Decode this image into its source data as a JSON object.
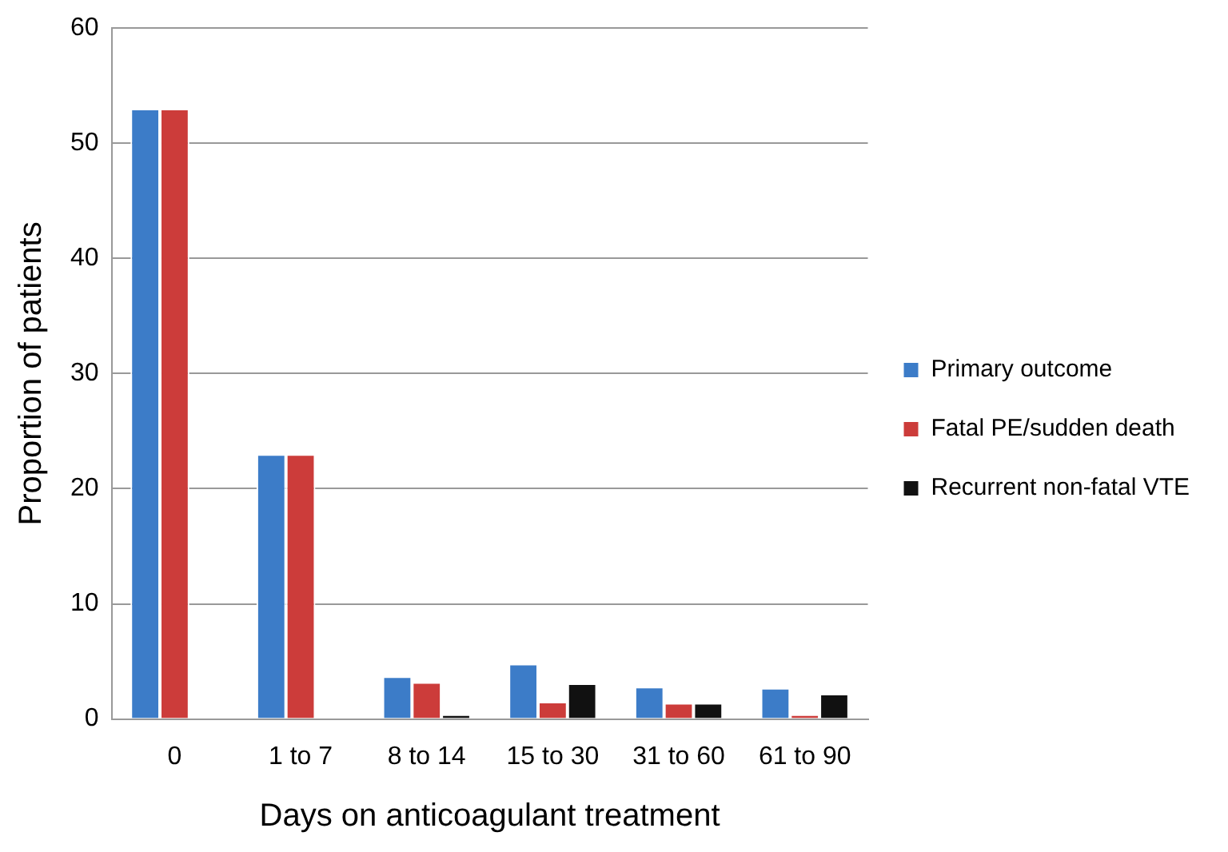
{
  "chart_data": {
    "type": "bar",
    "xlabel": "Days on anticoagulant treatment",
    "ylabel": "Proportion of patients",
    "categories": [
      "0",
      "1 to 7",
      "8 to 14",
      "15 to 30",
      "31 to 60",
      "61 to 90"
    ],
    "series": [
      {
        "name": "Primary outcome",
        "color": "#3c7cc8",
        "values": [
          53,
          23,
          3.7,
          4.8,
          2.8,
          2.7
        ]
      },
      {
        "name": "Fatal PE/sudden death",
        "color": "#cc3c3a",
        "values": [
          53,
          23,
          3.2,
          1.5,
          1.4,
          0.4
        ]
      },
      {
        "name": "Recurrent non-fatal VTE",
        "color": "#111111",
        "values": [
          0,
          0,
          0.4,
          3.1,
          1.4,
          2.2
        ]
      }
    ],
    "ylim": [
      0,
      60
    ],
    "yticks": [
      0,
      10,
      20,
      30,
      40,
      50,
      60
    ],
    "grid": "y",
    "legend": "right"
  }
}
